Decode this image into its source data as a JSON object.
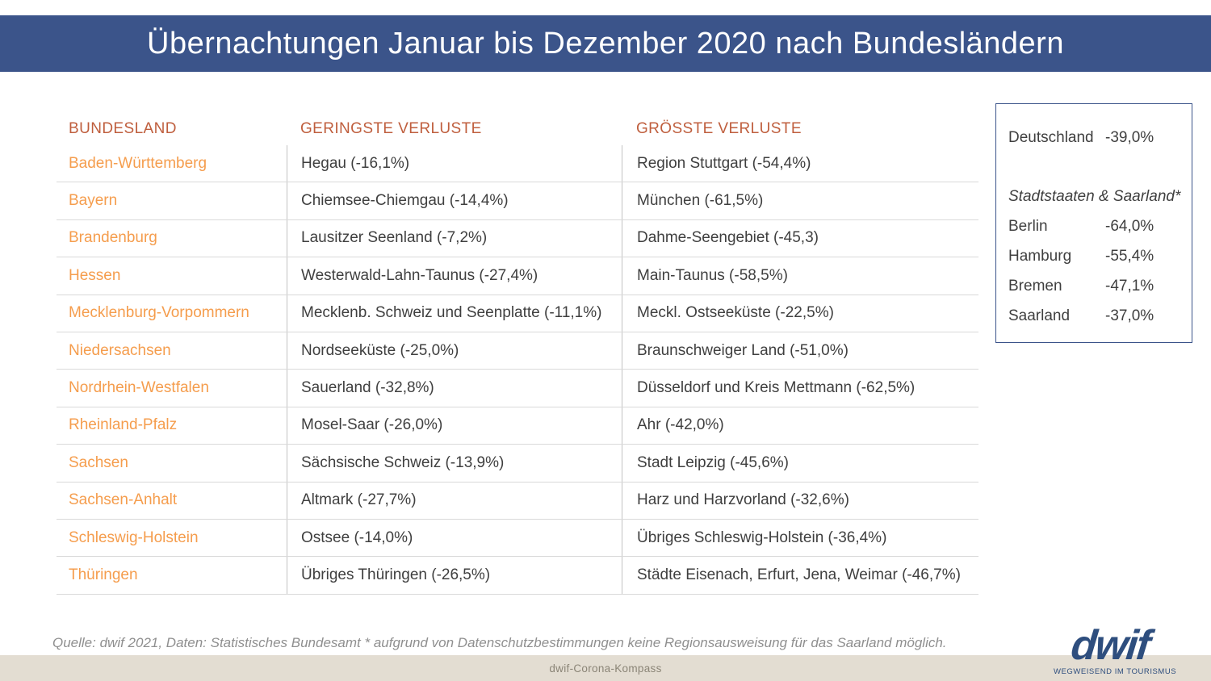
{
  "title": "Übernachtungen Januar bis Dezember 2020 nach Bundesländern",
  "table": {
    "headers": [
      "BUNDESLAND",
      "GERINGSTE VERLUSTE",
      "GRÖSSTE VERLUSTE"
    ],
    "rows": [
      {
        "bundesland": "Baden-Württemberg",
        "geringste": "Hegau (-16,1%)",
        "groesste": "Region Stuttgart (-54,4%)"
      },
      {
        "bundesland": "Bayern",
        "geringste": "Chiemsee-Chiemgau (-14,4%)",
        "groesste": "München (-61,5%)"
      },
      {
        "bundesland": "Brandenburg",
        "geringste": "Lausitzer Seenland (-7,2%)",
        "groesste": "Dahme-Seengebiet (-45,3)"
      },
      {
        "bundesland": "Hessen",
        "geringste": "Westerwald-Lahn-Taunus (-27,4%)",
        "groesste": "Main-Taunus (-58,5%)"
      },
      {
        "bundesland": "Mecklenburg-Vorpommern",
        "geringste": "Mecklenb. Schweiz und Seenplatte (-11,1%)",
        "groesste": "Meckl. Ostseeküste (-22,5%)"
      },
      {
        "bundesland": "Niedersachsen",
        "geringste": "Nordseeküste (-25,0%)",
        "groesste": "Braunschweiger Land (-51,0%)"
      },
      {
        "bundesland": "Nordrhein-Westfalen",
        "geringste": "Sauerland (-32,8%)",
        "groesste": "Düsseldorf und Kreis Mettmann (-62,5%)"
      },
      {
        "bundesland": "Rheinland-Pfalz",
        "geringste": "Mosel-Saar (-26,0%)",
        "groesste": "Ahr (-42,0%)"
      },
      {
        "bundesland": "Sachsen",
        "geringste": "Sächsische Schweiz (-13,9%)",
        "groesste": "Stadt Leipzig (-45,6%)"
      },
      {
        "bundesland": "Sachsen-Anhalt",
        "geringste": "Altmark (-27,7%)",
        "groesste": "Harz und Harzvorland (-32,6%)"
      },
      {
        "bundesland": "Schleswig-Holstein",
        "geringste": "Ostsee (-14,0%)",
        "groesste": "Übriges Schleswig-Holstein (-36,4%)"
      },
      {
        "bundesland": "Thüringen",
        "geringste": "Übriges Thüringen (-26,5%)",
        "groesste": "Städte Eisenach, Erfurt, Jena, Weimar (-46,7%)"
      }
    ]
  },
  "side_box": {
    "deutschland_label": "Deutschland",
    "deutschland_value": "-39,0%",
    "subheading": "Stadtstaaten & Saarland*",
    "rows": [
      {
        "label": "Berlin",
        "value": "-64,0%"
      },
      {
        "label": "Hamburg",
        "value": "-55,4%"
      },
      {
        "label": "Bremen",
        "value": "-47,1%"
      },
      {
        "label": "Saarland",
        "value": "-37,0%"
      }
    ]
  },
  "footer": {
    "source": "Quelle: dwif 2021, Daten: Statistisches Bundesamt  * aufgrund von Datenschutzbestimmungen keine Regionsausweisung für das Saarland möglich.",
    "bottom_bar": "dwif-Corona-Kompass",
    "logo_text": "dwif",
    "logo_tagline": "WEGWEISEND IM TOURISMUS"
  },
  "colors": {
    "title_band": "#3b548a",
    "header_text": "#bf5e3d",
    "bundesland_text": "#f59d4d",
    "cell_text": "#3f3f3f",
    "row_line": "#d9d9d9",
    "column_line": "#c3c3c3",
    "box_border": "#3b548a",
    "bottom_bar_bg": "#e3ddd2",
    "logo_blue": "#2e4e7e"
  }
}
